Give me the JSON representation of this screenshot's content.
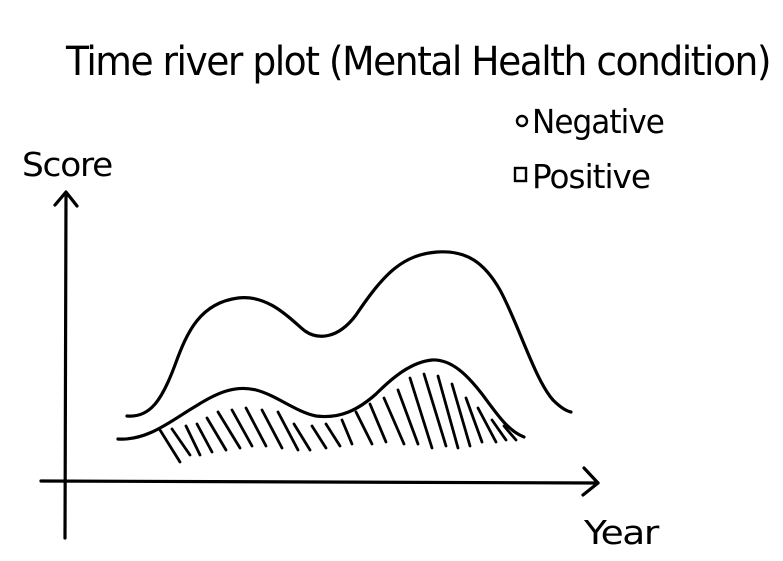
{
  "title": "Time river plot (Mental Health condition)",
  "legend": {
    "items": [
      {
        "label": "Negative",
        "marker": "outline-circle",
        "fill": "none"
      },
      {
        "label": "Positive",
        "marker": "outline-square",
        "fill": "hatched"
      }
    ]
  },
  "axes": {
    "y_label": "Score",
    "x_label": "Year"
  },
  "colors": {
    "ink": "#000000",
    "paper": "#ffffff"
  }
}
